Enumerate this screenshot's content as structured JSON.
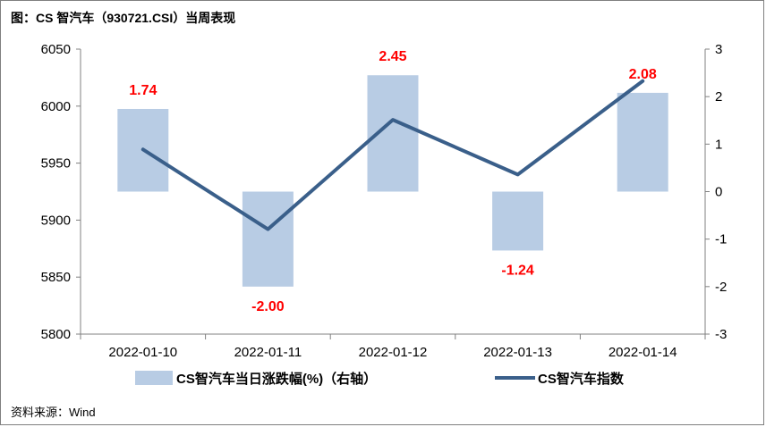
{
  "title": "图：CS 智汽车（930721.CSI）当周表现",
  "source": "资料来源：Wind",
  "chart_data": {
    "type": "bar+line",
    "categories": [
      "2022-01-10",
      "2022-01-11",
      "2022-01-12",
      "2022-01-13",
      "2022-01-14"
    ],
    "series": [
      {
        "name": "CS智汽车当日涨跌幅(%)（右轴）",
        "type": "bar",
        "axis": "right",
        "values": [
          1.74,
          -2.0,
          2.45,
          -1.24,
          2.08
        ],
        "color": "#b8cce4"
      },
      {
        "name": "CS智汽车指数",
        "type": "line",
        "axis": "left",
        "values": [
          5962,
          5892,
          5988,
          5940,
          6022
        ],
        "color": "#3a5f8a"
      }
    ],
    "data_labels": [
      "1.74",
      "-2.00",
      "2.45",
      "-1.24",
      "2.08"
    ],
    "label_color": "#ff0000",
    "y_left": {
      "min": 5800,
      "max": 6050,
      "ticks": [
        "5800",
        "5850",
        "5900",
        "5950",
        "6000",
        "6050"
      ]
    },
    "y_right": {
      "min": -3,
      "max": 3,
      "ticks": [
        "-3",
        "-2",
        "-1",
        "0",
        "1",
        "2",
        "3"
      ]
    },
    "grid": false,
    "legend_position": "bottom"
  }
}
